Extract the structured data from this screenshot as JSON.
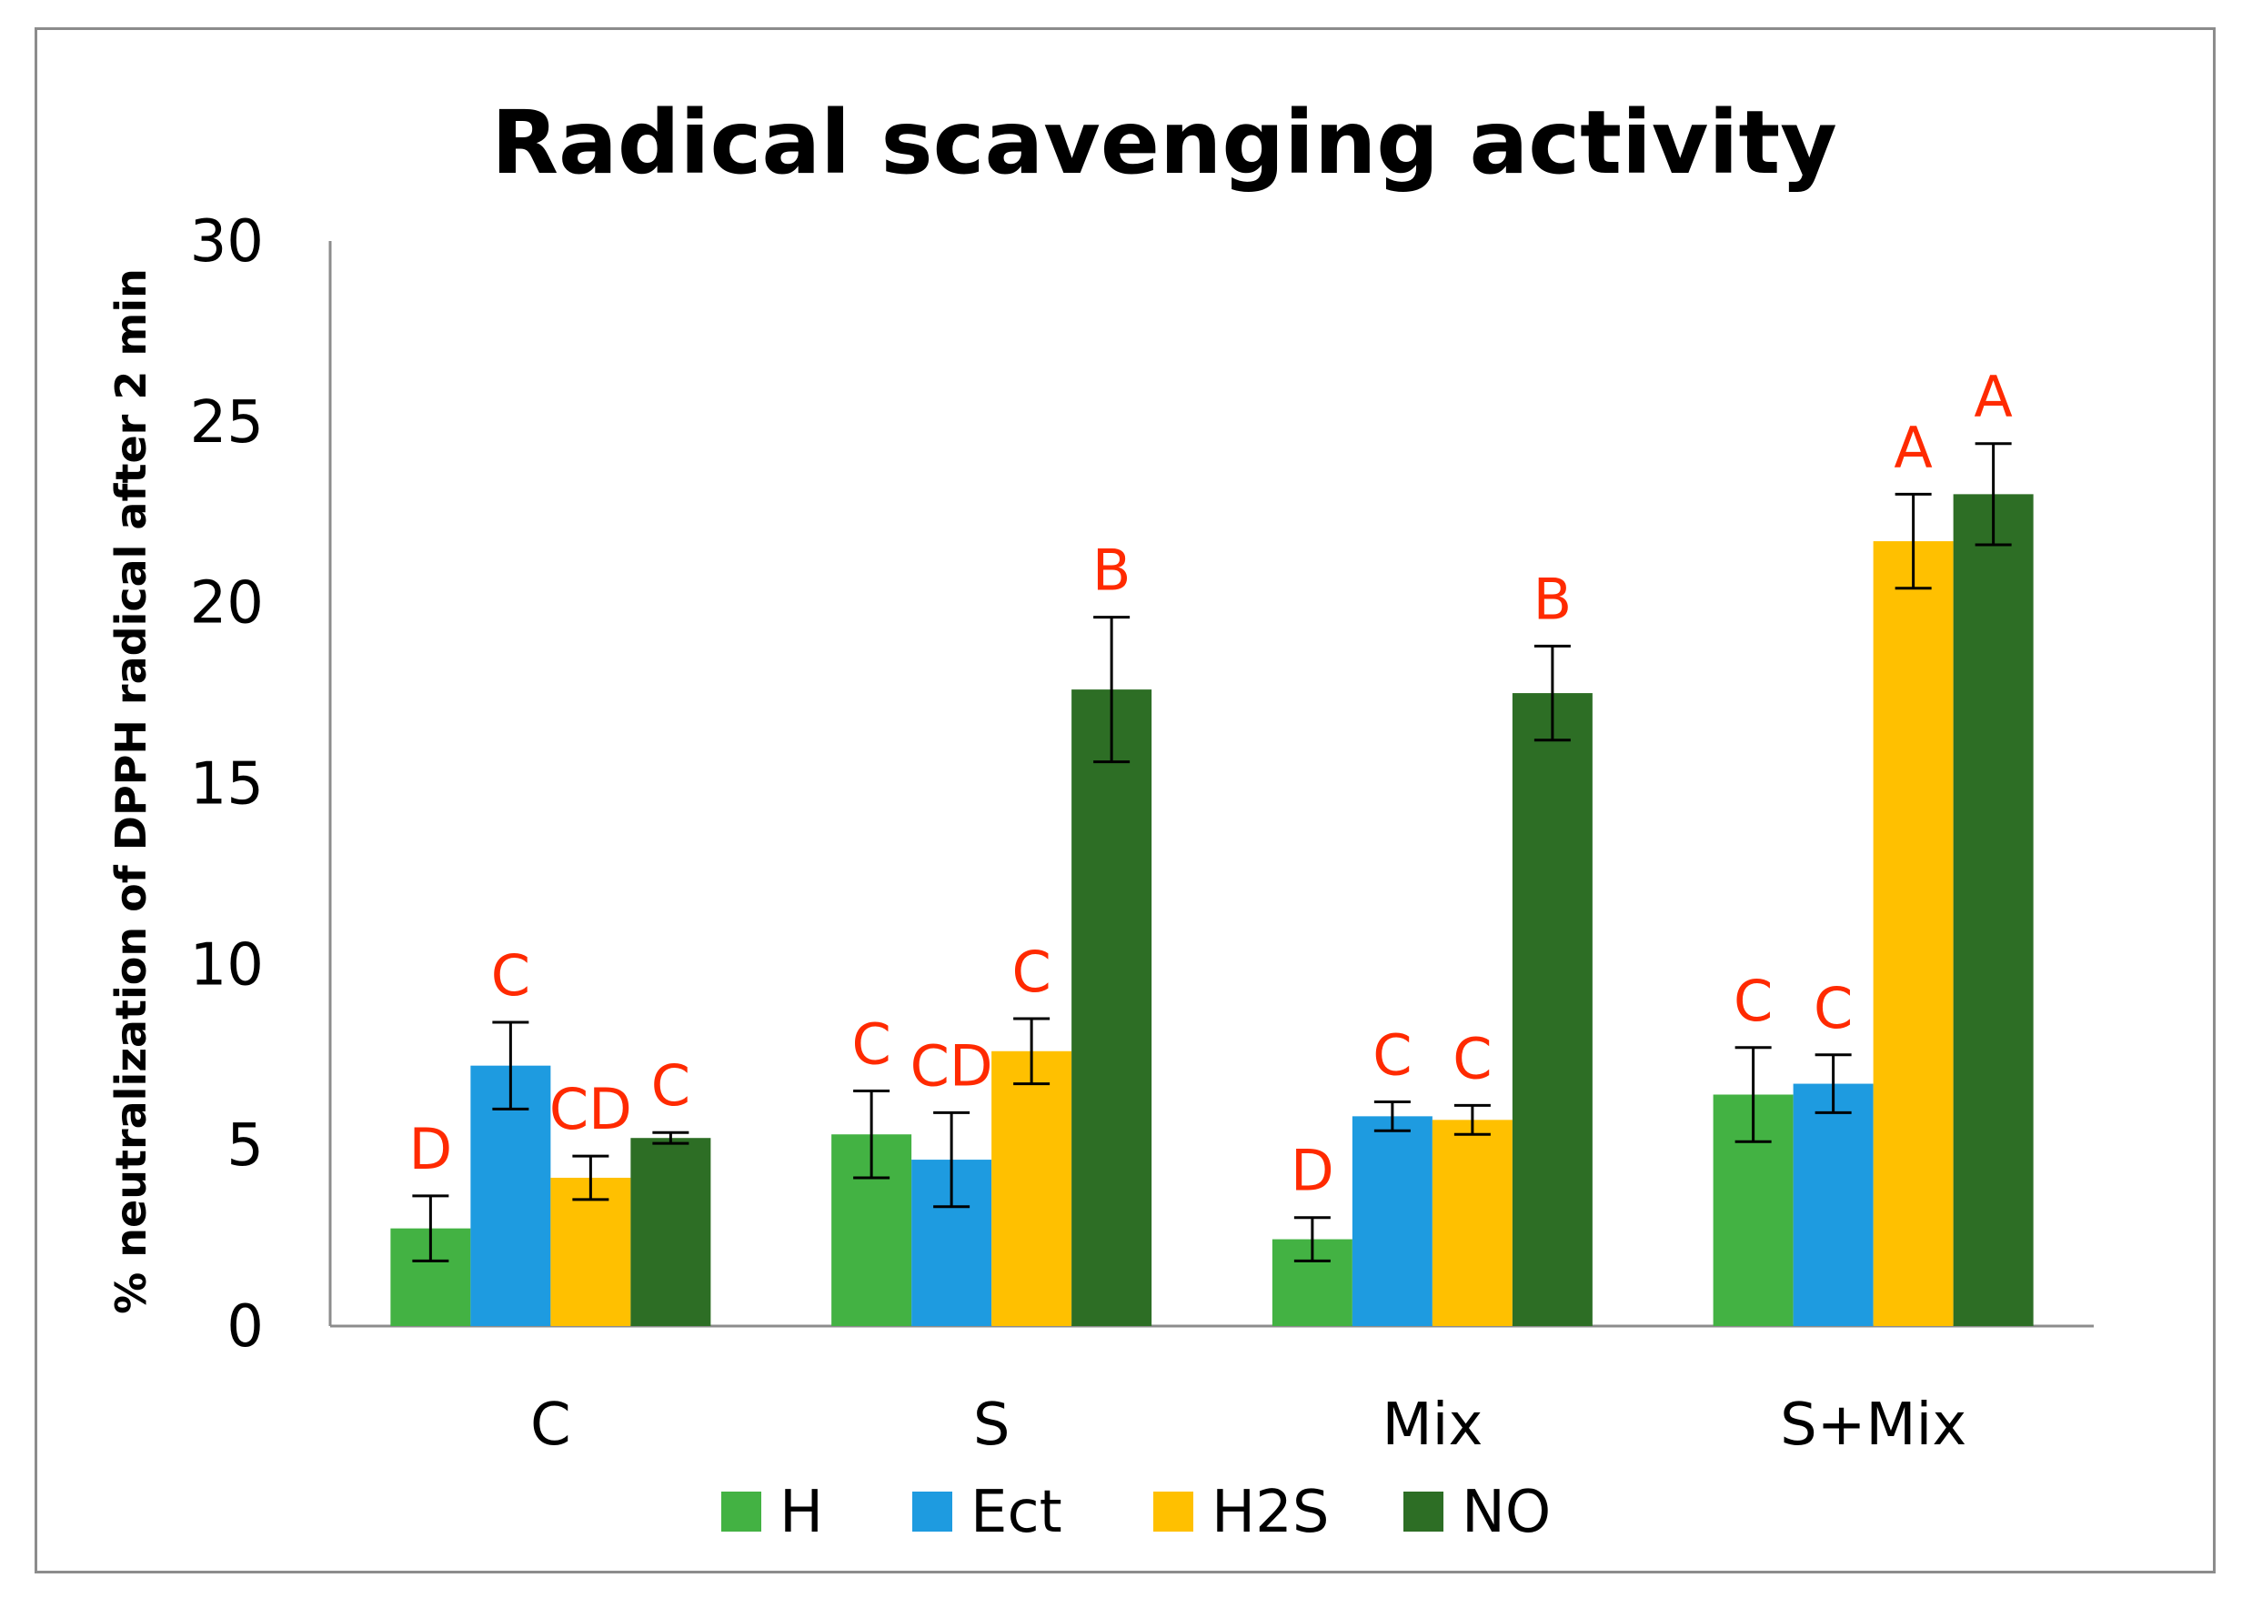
{
  "chart_data": {
    "type": "bar",
    "title": "Radical scavenging activity",
    "xlabel": "",
    "ylabel": "% neutralization of DPPH radical after 2 min",
    "ylim": [
      0,
      30
    ],
    "yticks": [
      "0",
      "5",
      "10",
      "15",
      "20",
      "25",
      "30"
    ],
    "categories": [
      "C",
      "S",
      "Mix",
      "S+Mix"
    ],
    "grid": false,
    "legend_position": "bottom",
    "series": [
      {
        "name": "H",
        "color": "#43b243",
        "values": [
          2.7,
          5.3,
          2.4,
          6.4
        ],
        "errors": [
          0.9,
          1.2,
          0.6,
          1.3
        ],
        "labels": [
          "D",
          "C",
          "D",
          "C"
        ]
      },
      {
        "name": "Ect",
        "color": "#1e9be0",
        "values": [
          7.2,
          4.6,
          5.8,
          6.7
        ],
        "errors": [
          1.2,
          1.3,
          0.4,
          0.8
        ],
        "labels": [
          "C",
          "CD",
          "C",
          "C"
        ]
      },
      {
        "name": "H2S",
        "color": "#ffc000",
        "values": [
          4.1,
          7.6,
          5.7,
          21.7
        ],
        "errors": [
          0.6,
          0.9,
          0.4,
          1.3
        ],
        "labels": [
          "CD",
          "C",
          "C",
          "A"
        ]
      },
      {
        "name": "NO",
        "color": "#2d6e25",
        "values": [
          5.2,
          17.6,
          17.5,
          23.0
        ],
        "errors": [
          0.15,
          2.0,
          1.3,
          1.4
        ],
        "labels": [
          "C",
          "B",
          "B",
          "A"
        ]
      }
    ]
  }
}
